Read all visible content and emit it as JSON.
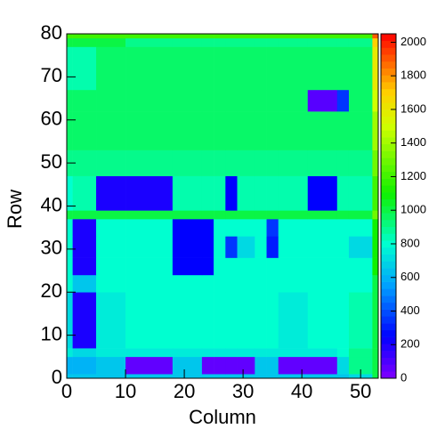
{
  "chart_data": {
    "type": "heatmap",
    "x_label": "Column",
    "y_label": "Row",
    "xbins": [
      0,
      1,
      5,
      10,
      18,
      23,
      25,
      27,
      29,
      32,
      34,
      36,
      41,
      46,
      48,
      52,
      53
    ],
    "ybins": [
      0,
      1,
      5,
      7,
      20,
      24,
      28,
      33,
      37,
      39,
      47,
      53,
      62,
      67,
      77,
      79,
      80
    ],
    "values": [
      [
        650,
        650,
        650,
        650,
        650,
        650,
        650,
        650,
        650,
        650,
        650,
        650,
        650,
        650,
        700,
        1000
      ],
      [
        600,
        600,
        650,
        60,
        650,
        60,
        60,
        60,
        60,
        650,
        650,
        60,
        60,
        700,
        900,
        1000
      ],
      [
        750,
        700,
        750,
        750,
        750,
        750,
        750,
        750,
        750,
        750,
        750,
        750,
        750,
        800,
        900,
        1000
      ],
      [
        700,
        200,
        750,
        800,
        800,
        800,
        800,
        800,
        800,
        800,
        800,
        750,
        800,
        800,
        850,
        1000
      ],
      [
        800,
        650,
        800,
        800,
        800,
        800,
        800,
        800,
        800,
        800,
        800,
        800,
        800,
        800,
        800,
        1000
      ],
      [
        800,
        200,
        800,
        800,
        250,
        250,
        800,
        800,
        800,
        800,
        800,
        800,
        800,
        800,
        800,
        1100
      ],
      [
        800,
        200,
        800,
        800,
        250,
        250,
        800,
        350,
        700,
        800,
        300,
        800,
        800,
        800,
        700,
        1100
      ],
      [
        800,
        200,
        800,
        800,
        250,
        250,
        800,
        800,
        800,
        800,
        350,
        800,
        800,
        800,
        800,
        1100
      ],
      [
        1000,
        1000,
        1000,
        1000,
        1000,
        1000,
        1000,
        1000,
        1000,
        1000,
        1000,
        1000,
        1000,
        1000,
        1000,
        1300
      ],
      [
        800,
        850,
        200,
        200,
        850,
        850,
        850,
        250,
        850,
        850,
        850,
        850,
        250,
        850,
        850,
        1200
      ],
      [
        900,
        900,
        900,
        900,
        900,
        900,
        900,
        900,
        900,
        900,
        900,
        900,
        900,
        900,
        900,
        1300
      ],
      [
        950,
        950,
        950,
        950,
        950,
        950,
        950,
        950,
        950,
        950,
        950,
        950,
        950,
        950,
        950,
        1400
      ],
      [
        950,
        950,
        950,
        950,
        950,
        950,
        950,
        950,
        950,
        950,
        950,
        950,
        80,
        350,
        950,
        1500
      ],
      [
        850,
        850,
        950,
        950,
        950,
        950,
        950,
        950,
        950,
        950,
        950,
        950,
        950,
        950,
        950,
        1600
      ],
      [
        1000,
        1000,
        1000,
        900,
        900,
        900,
        900,
        900,
        900,
        900,
        900,
        900,
        900,
        900,
        900,
        1700
      ],
      [
        1200,
        1200,
        1200,
        1200,
        1200,
        1200,
        1200,
        1200,
        1200,
        1200,
        1200,
        1200,
        1200,
        1200,
        1200,
        1900
      ]
    ],
    "xlim": [
      0,
      53
    ],
    "xticks": [
      0,
      10,
      20,
      30,
      40,
      50
    ],
    "ylim": [
      0,
      80
    ],
    "yticks": [
      0,
      10,
      20,
      30,
      40,
      50,
      60,
      70,
      80
    ],
    "zlim": [
      0,
      2050
    ],
    "zticks": [
      0,
      200,
      400,
      600,
      800,
      1000,
      1200,
      1400,
      1600,
      1800,
      2000
    ],
    "colorscale": [
      [
        0,
        "#8000ff"
      ],
      [
        250,
        "#0000ff"
      ],
      [
        550,
        "#00a0ff"
      ],
      [
        800,
        "#00ffd0"
      ],
      [
        1100,
        "#10f000"
      ],
      [
        1500,
        "#d0ff00"
      ],
      [
        1700,
        "#ffd000"
      ],
      [
        2050,
        "#ff0000"
      ]
    ]
  }
}
